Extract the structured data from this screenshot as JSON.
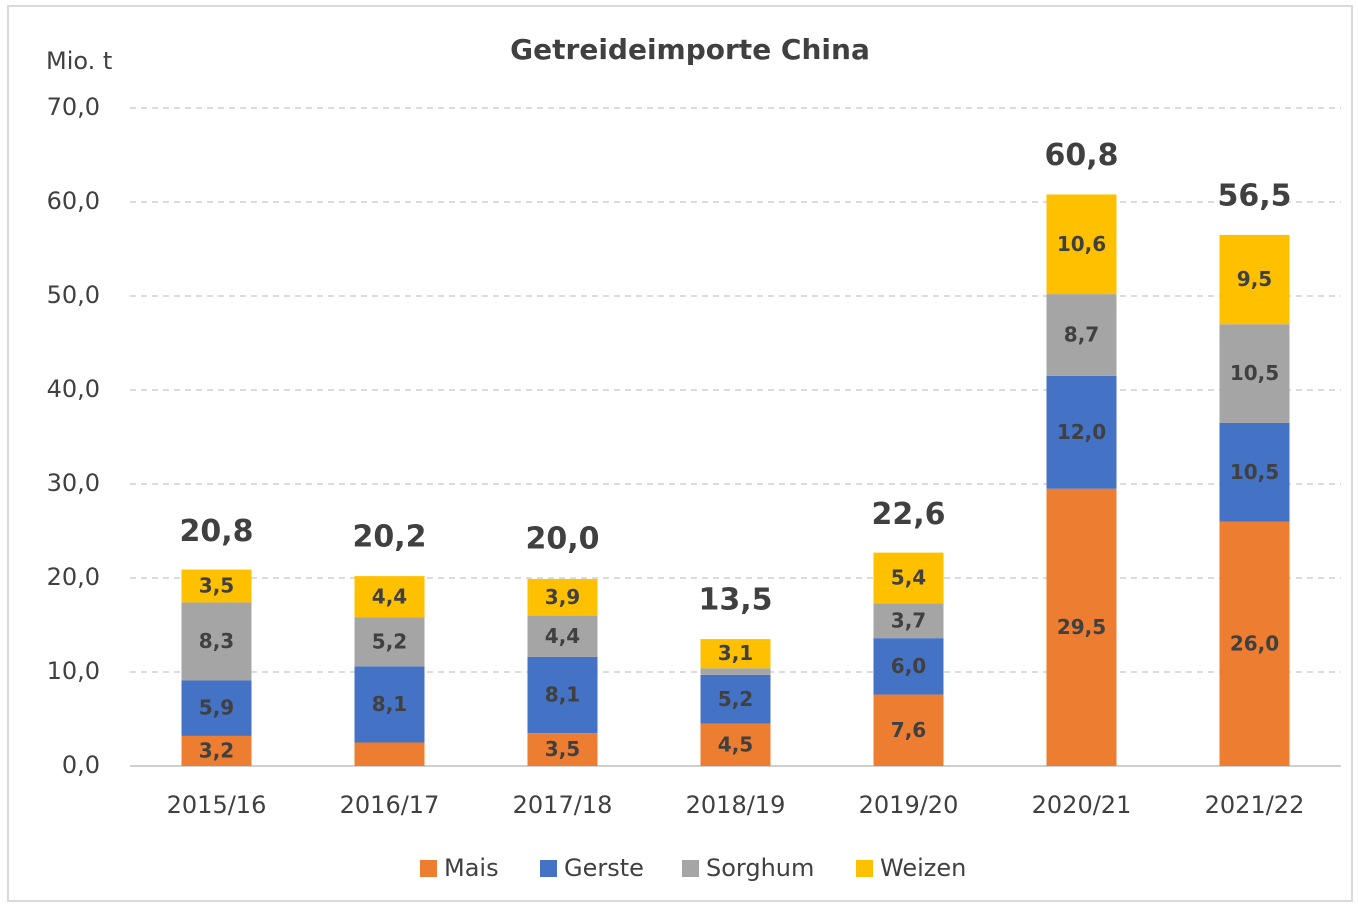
{
  "chart_data": {
    "type": "stacked_bar",
    "title": "Getreideimporte China",
    "y_axis_label": "Mio. t",
    "categories": [
      "2015/16",
      "2016/17",
      "2017/18",
      "2018/19",
      "2019/20",
      "2020/21",
      "2021/22"
    ],
    "series": [
      {
        "name": "Mais",
        "color": "#ed7d31",
        "values": [
          3.2,
          2.5,
          3.5,
          4.5,
          7.6,
          29.5,
          26.0
        ],
        "value_labels": [
          "3,2",
          null,
          "3,5",
          "4,5",
          "7,6",
          "29,5",
          "26,0"
        ]
      },
      {
        "name": "Gerste",
        "color": "#4472c4",
        "values": [
          5.9,
          8.1,
          8.1,
          5.2,
          6.0,
          12.0,
          10.5
        ],
        "value_labels": [
          "5,9",
          "8,1",
          "8,1",
          "5,2",
          "6,0",
          "12,0",
          "10,5"
        ]
      },
      {
        "name": "Sorghum",
        "color": "#a5a5a5",
        "values": [
          8.3,
          5.2,
          4.4,
          0.7,
          3.7,
          8.7,
          10.5
        ],
        "value_labels": [
          "8,3",
          "5,2",
          "4,4",
          null,
          "3,7",
          "8,7",
          "10,5"
        ]
      },
      {
        "name": "Weizen",
        "color": "#ffc000",
        "values": [
          3.5,
          4.4,
          3.9,
          3.1,
          5.4,
          10.6,
          9.5
        ],
        "value_labels": [
          "3,5",
          "4,4",
          "3,9",
          "3,1",
          "5,4",
          "10,6",
          "9,5"
        ]
      }
    ],
    "totals": [
      20.8,
      20.2,
      20.0,
      13.5,
      22.6,
      60.8,
      56.5
    ],
    "total_labels": [
      "20,8",
      "20,2",
      "20,0",
      "13,5",
      "22,6",
      "60,8",
      "56,5"
    ],
    "ylim": [
      0,
      70
    ],
    "yticks": [
      {
        "value": 0,
        "label": "0,0"
      },
      {
        "value": 10,
        "label": "10,0"
      },
      {
        "value": 20,
        "label": "20,0"
      },
      {
        "value": 30,
        "label": "30,0"
      },
      {
        "value": 40,
        "label": "40,0"
      },
      {
        "value": 50,
        "label": "50,0"
      },
      {
        "value": 60,
        "label": "60,0"
      },
      {
        "value": 70,
        "label": "70,0"
      }
    ],
    "grid": true,
    "legend": "bottom"
  }
}
